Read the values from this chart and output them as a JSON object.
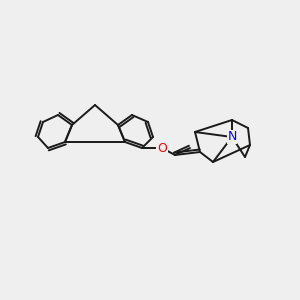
{
  "background_color": "#efefef",
  "bond_color": "#1a1a1a",
  "O_color": "#ff0000",
  "N_color": "#0000ff",
  "lw": 1.4,
  "figsize": [
    3.0,
    3.0
  ],
  "dpi": 100
}
